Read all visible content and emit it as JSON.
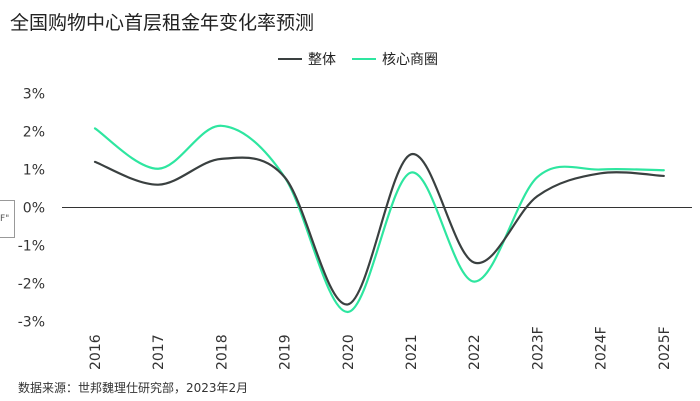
{
  "title": "全国购物中心首层租金年变化率预测",
  "source": "数据来源：世邦魏理仕研究部，2023年2月",
  "side_stub_text": "F\"",
  "chart_data": {
    "type": "line",
    "title": "全国购物中心首层租金年变化率预测",
    "xlabel": "",
    "ylabel": "",
    "categories": [
      "2016",
      "2017",
      "2018",
      "2019",
      "2020",
      "2021",
      "2022",
      "2023F",
      "2024F",
      "2025F"
    ],
    "y_tick_labels": [
      "3%",
      "2%",
      "1%",
      "0%",
      "-1%",
      "-2%",
      "-3%"
    ],
    "ylim": [
      -3,
      3
    ],
    "legend": "top-center",
    "grid": false,
    "series": [
      {
        "name": "整体",
        "color": "#3a4040",
        "values": [
          1.2,
          0.6,
          1.28,
          0.8,
          -2.55,
          1.4,
          -1.45,
          0.3,
          0.9,
          0.83
        ]
      },
      {
        "name": "核心商圈",
        "color": "#2ee6a0",
        "values": [
          2.08,
          1.02,
          2.15,
          0.8,
          -2.75,
          0.92,
          -1.95,
          0.8,
          1.0,
          0.98
        ]
      }
    ]
  }
}
